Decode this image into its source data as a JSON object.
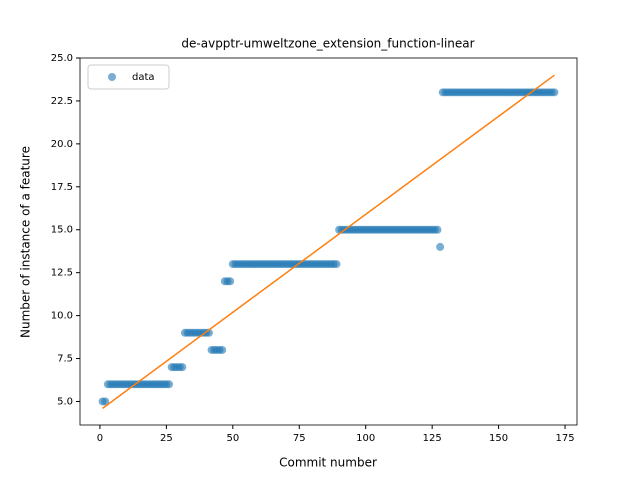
{
  "chart_data": {
    "type": "scatter",
    "title": "de-avpptr-umweltzone_extension_function-linear",
    "x_label": "Commit number",
    "y_label": "Number of instance of a feature",
    "legend": "upper left",
    "series": [
      {
        "name": "data",
        "color": "#1f77b4",
        "x": [
          1,
          2,
          3,
          4,
          5,
          6,
          7,
          8,
          9,
          10,
          11,
          12,
          13,
          14,
          15,
          16,
          17,
          18,
          19,
          20,
          21,
          22,
          23,
          24,
          25,
          26,
          27,
          28,
          29,
          30,
          31,
          32,
          33,
          34,
          35,
          36,
          37,
          38,
          39,
          40,
          41,
          42,
          43,
          44,
          45,
          46,
          47,
          48,
          49,
          50,
          51,
          52,
          53,
          54,
          55,
          56,
          57,
          58,
          59,
          60,
          61,
          62,
          63,
          64,
          65,
          66,
          67,
          68,
          69,
          70,
          71,
          72,
          73,
          74,
          75,
          76,
          77,
          78,
          79,
          80,
          81,
          82,
          83,
          84,
          85,
          86,
          87,
          88,
          89,
          90,
          91,
          92,
          93,
          94,
          95,
          96,
          97,
          98,
          99,
          100,
          101,
          102,
          103,
          104,
          105,
          106,
          107,
          108,
          109,
          110,
          111,
          112,
          113,
          114,
          115,
          116,
          117,
          118,
          119,
          120,
          121,
          122,
          123,
          124,
          125,
          126,
          127,
          128,
          129,
          130,
          131,
          132,
          133,
          134,
          135,
          136,
          137,
          138,
          139,
          140,
          141,
          142,
          143,
          144,
          145,
          146,
          147,
          148,
          149,
          150,
          151,
          152,
          153,
          154,
          155,
          156,
          157,
          158,
          159,
          160,
          161,
          162,
          163,
          164,
          165,
          166,
          167,
          168,
          169,
          170,
          171
        ],
        "values": [
          5,
          5,
          6,
          6,
          6,
          6,
          6,
          6,
          6,
          6,
          6,
          6,
          6,
          6,
          6,
          6,
          6,
          6,
          6,
          6,
          6,
          6,
          6,
          6,
          6,
          6,
          7,
          7,
          7,
          7,
          7,
          9,
          9,
          9,
          9,
          9,
          9,
          9,
          9,
          9,
          9,
          8,
          8,
          8,
          8,
          8,
          12,
          12,
          12,
          13,
          13,
          13,
          13,
          13,
          13,
          13,
          13,
          13,
          13,
          13,
          13,
          13,
          13,
          13,
          13,
          13,
          13,
          13,
          13,
          13,
          13,
          13,
          13,
          13,
          13,
          13,
          13,
          13,
          13,
          13,
          13,
          13,
          13,
          13,
          13,
          13,
          13,
          13,
          13,
          15,
          15,
          15,
          15,
          15,
          15,
          15,
          15,
          15,
          15,
          15,
          15,
          15,
          15,
          15,
          15,
          15,
          15,
          15,
          15,
          15,
          15,
          15,
          15,
          15,
          15,
          15,
          15,
          15,
          15,
          15,
          15,
          15,
          15,
          15,
          15,
          15,
          15,
          14,
          23,
          23,
          23,
          23,
          23,
          23,
          23,
          23,
          23,
          23,
          23,
          23,
          23,
          23,
          23,
          23,
          23,
          23,
          23,
          23,
          23,
          23,
          23,
          23,
          23,
          23,
          23,
          23,
          23,
          23,
          23,
          23,
          23,
          23,
          23,
          23,
          23,
          23,
          23,
          23,
          23,
          23,
          23
        ]
      }
    ],
    "fit": {
      "color": "#ff7f0e",
      "x": [
        1,
        171
      ],
      "values": [
        4.6,
        24.0
      ]
    },
    "xlim": [
      -7.5,
      179.5
    ],
    "ylim": [
      3.63,
      25.0
    ],
    "xticks": [
      0,
      25,
      50,
      75,
      100,
      125,
      150,
      175
    ],
    "yticks": [
      {
        "value": 5,
        "label": "5.0"
      },
      7.5,
      {
        "value": 10,
        "label": "10.0"
      },
      12.5,
      {
        "value": 15,
        "label": "15.0"
      },
      17.5,
      {
        "value": 20,
        "label": "20.0"
      },
      22.5,
      {
        "value": 25,
        "label": "25.0"
      }
    ]
  }
}
